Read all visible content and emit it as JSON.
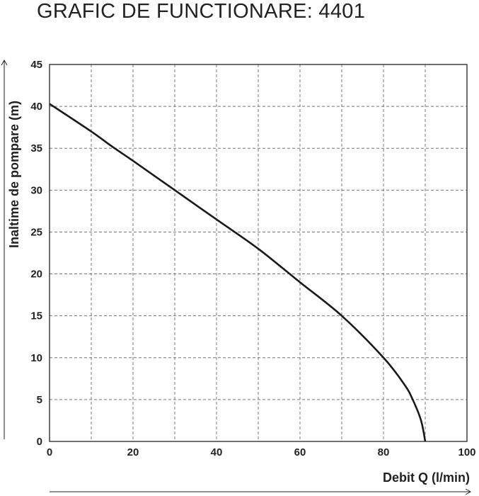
{
  "chart_data": {
    "type": "line",
    "title": "GRAFIC DE FUNCTIONARE: 4401",
    "xlabel": "Debit   Q (l/min)",
    "ylabel": "Inaltime de pompare (m)",
    "xlim": [
      0,
      100
    ],
    "ylim": [
      0,
      45
    ],
    "xticks": [
      "0",
      "20",
      "40",
      "60",
      "80",
      "100"
    ],
    "yticks": [
      "0",
      "5",
      "10",
      "15",
      "20",
      "25",
      "30",
      "35",
      "40",
      "45"
    ],
    "grid": true,
    "series": [
      {
        "color": "#1a1a1a",
        "x": [
          0,
          10,
          15,
          20,
          30,
          40,
          50,
          60,
          70,
          80,
          85,
          87,
          89,
          90
        ],
        "y": [
          40.3,
          37,
          35.2,
          33.5,
          30,
          26.5,
          23,
          19,
          15,
          10,
          6.8,
          5,
          2.5,
          0
        ]
      }
    ]
  }
}
